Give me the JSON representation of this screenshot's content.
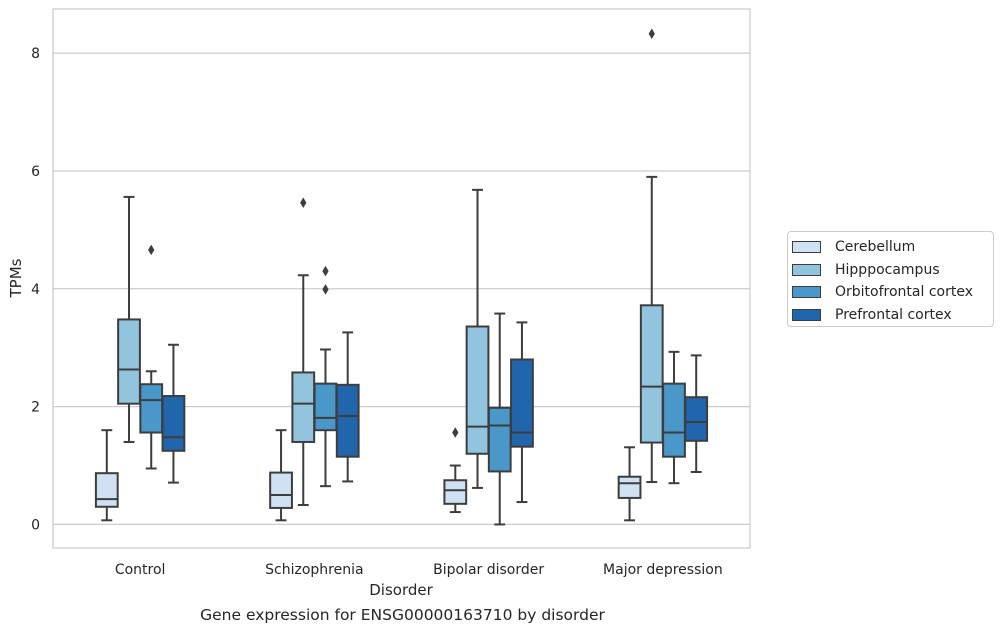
{
  "caption": "Gene expression for ENSG00000163710 by disorder",
  "chart_data": {
    "type": "box",
    "xlabel": "Disorder",
    "ylabel": "TPMs",
    "ylim": [
      -0.4,
      8.75
    ],
    "yticks": [
      0,
      2,
      4,
      6,
      8
    ],
    "grid": "horizontal",
    "legend_position": "right",
    "categories": [
      "Control",
      "Schizophrenia",
      "Bipolar disorder",
      "Major depression"
    ],
    "series": [
      {
        "name": "Cerebellum",
        "color": "#cfe1f2",
        "boxes": [
          {
            "whislo": 0.07,
            "q1": 0.3,
            "med": 0.43,
            "q3": 0.87,
            "whishi": 1.6,
            "fliers": []
          },
          {
            "whislo": 0.07,
            "q1": 0.28,
            "med": 0.5,
            "q3": 0.88,
            "whishi": 1.6,
            "fliers": []
          },
          {
            "whislo": 0.21,
            "q1": 0.35,
            "med": 0.58,
            "q3": 0.75,
            "whishi": 1.0,
            "fliers": [
              1.56
            ]
          },
          {
            "whislo": 0.07,
            "q1": 0.45,
            "med": 0.7,
            "q3": 0.81,
            "whishi": 1.31,
            "fliers": []
          }
        ]
      },
      {
        "name": "Hipppocampus",
        "color": "#93c4de",
        "boxes": [
          {
            "whislo": 1.4,
            "q1": 2.05,
            "med": 2.63,
            "q3": 3.48,
            "whishi": 5.56,
            "fliers": []
          },
          {
            "whislo": 0.33,
            "q1": 1.4,
            "med": 2.05,
            "q3": 2.58,
            "whishi": 4.23,
            "fliers": [
              5.46
            ]
          },
          {
            "whislo": 0.62,
            "q1": 1.2,
            "med": 1.66,
            "q3": 3.36,
            "whishi": 5.68,
            "fliers": []
          },
          {
            "whislo": 0.72,
            "q1": 1.39,
            "med": 2.34,
            "q3": 3.72,
            "whishi": 5.9,
            "fliers": [
              8.33
            ]
          }
        ]
      },
      {
        "name": "Orbitofrontal cortex",
        "color": "#4a98c9",
        "boxes": [
          {
            "whislo": 0.95,
            "q1": 1.56,
            "med": 2.11,
            "q3": 2.38,
            "whishi": 2.6,
            "fliers": [
              4.66
            ]
          },
          {
            "whislo": 0.65,
            "q1": 1.6,
            "med": 1.81,
            "q3": 2.39,
            "whishi": 2.97,
            "fliers": [
              3.99,
              4.3
            ]
          },
          {
            "whislo": 0.0,
            "q1": 0.9,
            "med": 1.68,
            "q3": 1.98,
            "whishi": 3.58,
            "fliers": []
          },
          {
            "whislo": 0.7,
            "q1": 1.15,
            "med": 1.56,
            "q3": 2.39,
            "whishi": 2.93,
            "fliers": []
          }
        ]
      },
      {
        "name": "Prefrontal cortex",
        "color": "#2166ac",
        "boxes": [
          {
            "whislo": 0.71,
            "q1": 1.25,
            "med": 1.48,
            "q3": 2.18,
            "whishi": 3.05,
            "fliers": []
          },
          {
            "whislo": 0.73,
            "q1": 1.15,
            "med": 1.84,
            "q3": 2.37,
            "whishi": 3.26,
            "fliers": []
          },
          {
            "whislo": 0.38,
            "q1": 1.32,
            "med": 1.56,
            "q3": 2.8,
            "whishi": 3.43,
            "fliers": []
          },
          {
            "whislo": 0.89,
            "q1": 1.42,
            "med": 1.74,
            "q3": 2.16,
            "whishi": 2.87,
            "fliers": []
          }
        ]
      }
    ]
  }
}
